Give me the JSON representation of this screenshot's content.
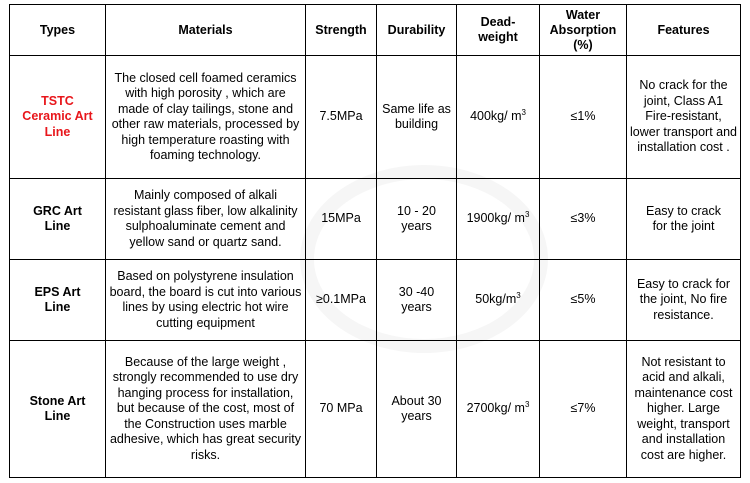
{
  "headers": {
    "types": "Types",
    "materials": "Materials",
    "strength": "Strength",
    "durability": "Durability",
    "deadweight": "Dead-weight",
    "water": "Water Absorption (%)",
    "features": "Features"
  },
  "rows": [
    {
      "type": "TSTC Ceramic Art Line",
      "materials": "The closed cell foamed ceramics with high porosity , which are made of clay tailings, stone and other raw materials, processed by high temperature roasting with foaming technology.",
      "strength": "7.5MPa",
      "durability": "Same life as building",
      "deadweight_value": "400kg/ m",
      "deadweight_sup": "3",
      "water": "≤1%",
      "features": "No crack for the joint, Class A1 Fire-resistant, lower transport and installation cost ."
    },
    {
      "type": "GRC Art Line",
      "materials": "Mainly composed of alkali resistant glass fiber, low alkalinity sulphoaluminate cement and yellow sand or quartz sand.",
      "strength": "15MPa",
      "durability": "10 - 20 years",
      "deadweight_value": "1900kg/ m",
      "deadweight_sup": "3",
      "water": "≤3%",
      "features": "Easy to crack for the joint"
    },
    {
      "type": "EPS Art Line",
      "materials": "Based on polystyrene insulation board, the board is cut into various lines by using electric hot wire cutting equipment",
      "strength": "≥0.1MPa",
      "durability": "30 -40 years",
      "deadweight_value": "50kg/m",
      "deadweight_sup": "3",
      "water": "≤5%",
      "features": "Easy to crack for the joint, No fire resistance."
    },
    {
      "type": "Stone Art Line",
      "materials": "Because of the large weight , strongly recommended to use dry hanging process for installation, but because of the cost, most of the Construction uses marble adhesive, which has great security risks.",
      "strength": "70 MPa",
      "durability": "About 30 years",
      "deadweight_value": "2700kg/ m",
      "deadweight_sup": "3",
      "water": "≤7%",
      "features": "Not resistant to acid and alkali, maintenance cost higher. Large weight, transport and installation cost are higher."
    }
  ],
  "colors": {
    "highlight": "#e8161b",
    "border": "#000000"
  }
}
